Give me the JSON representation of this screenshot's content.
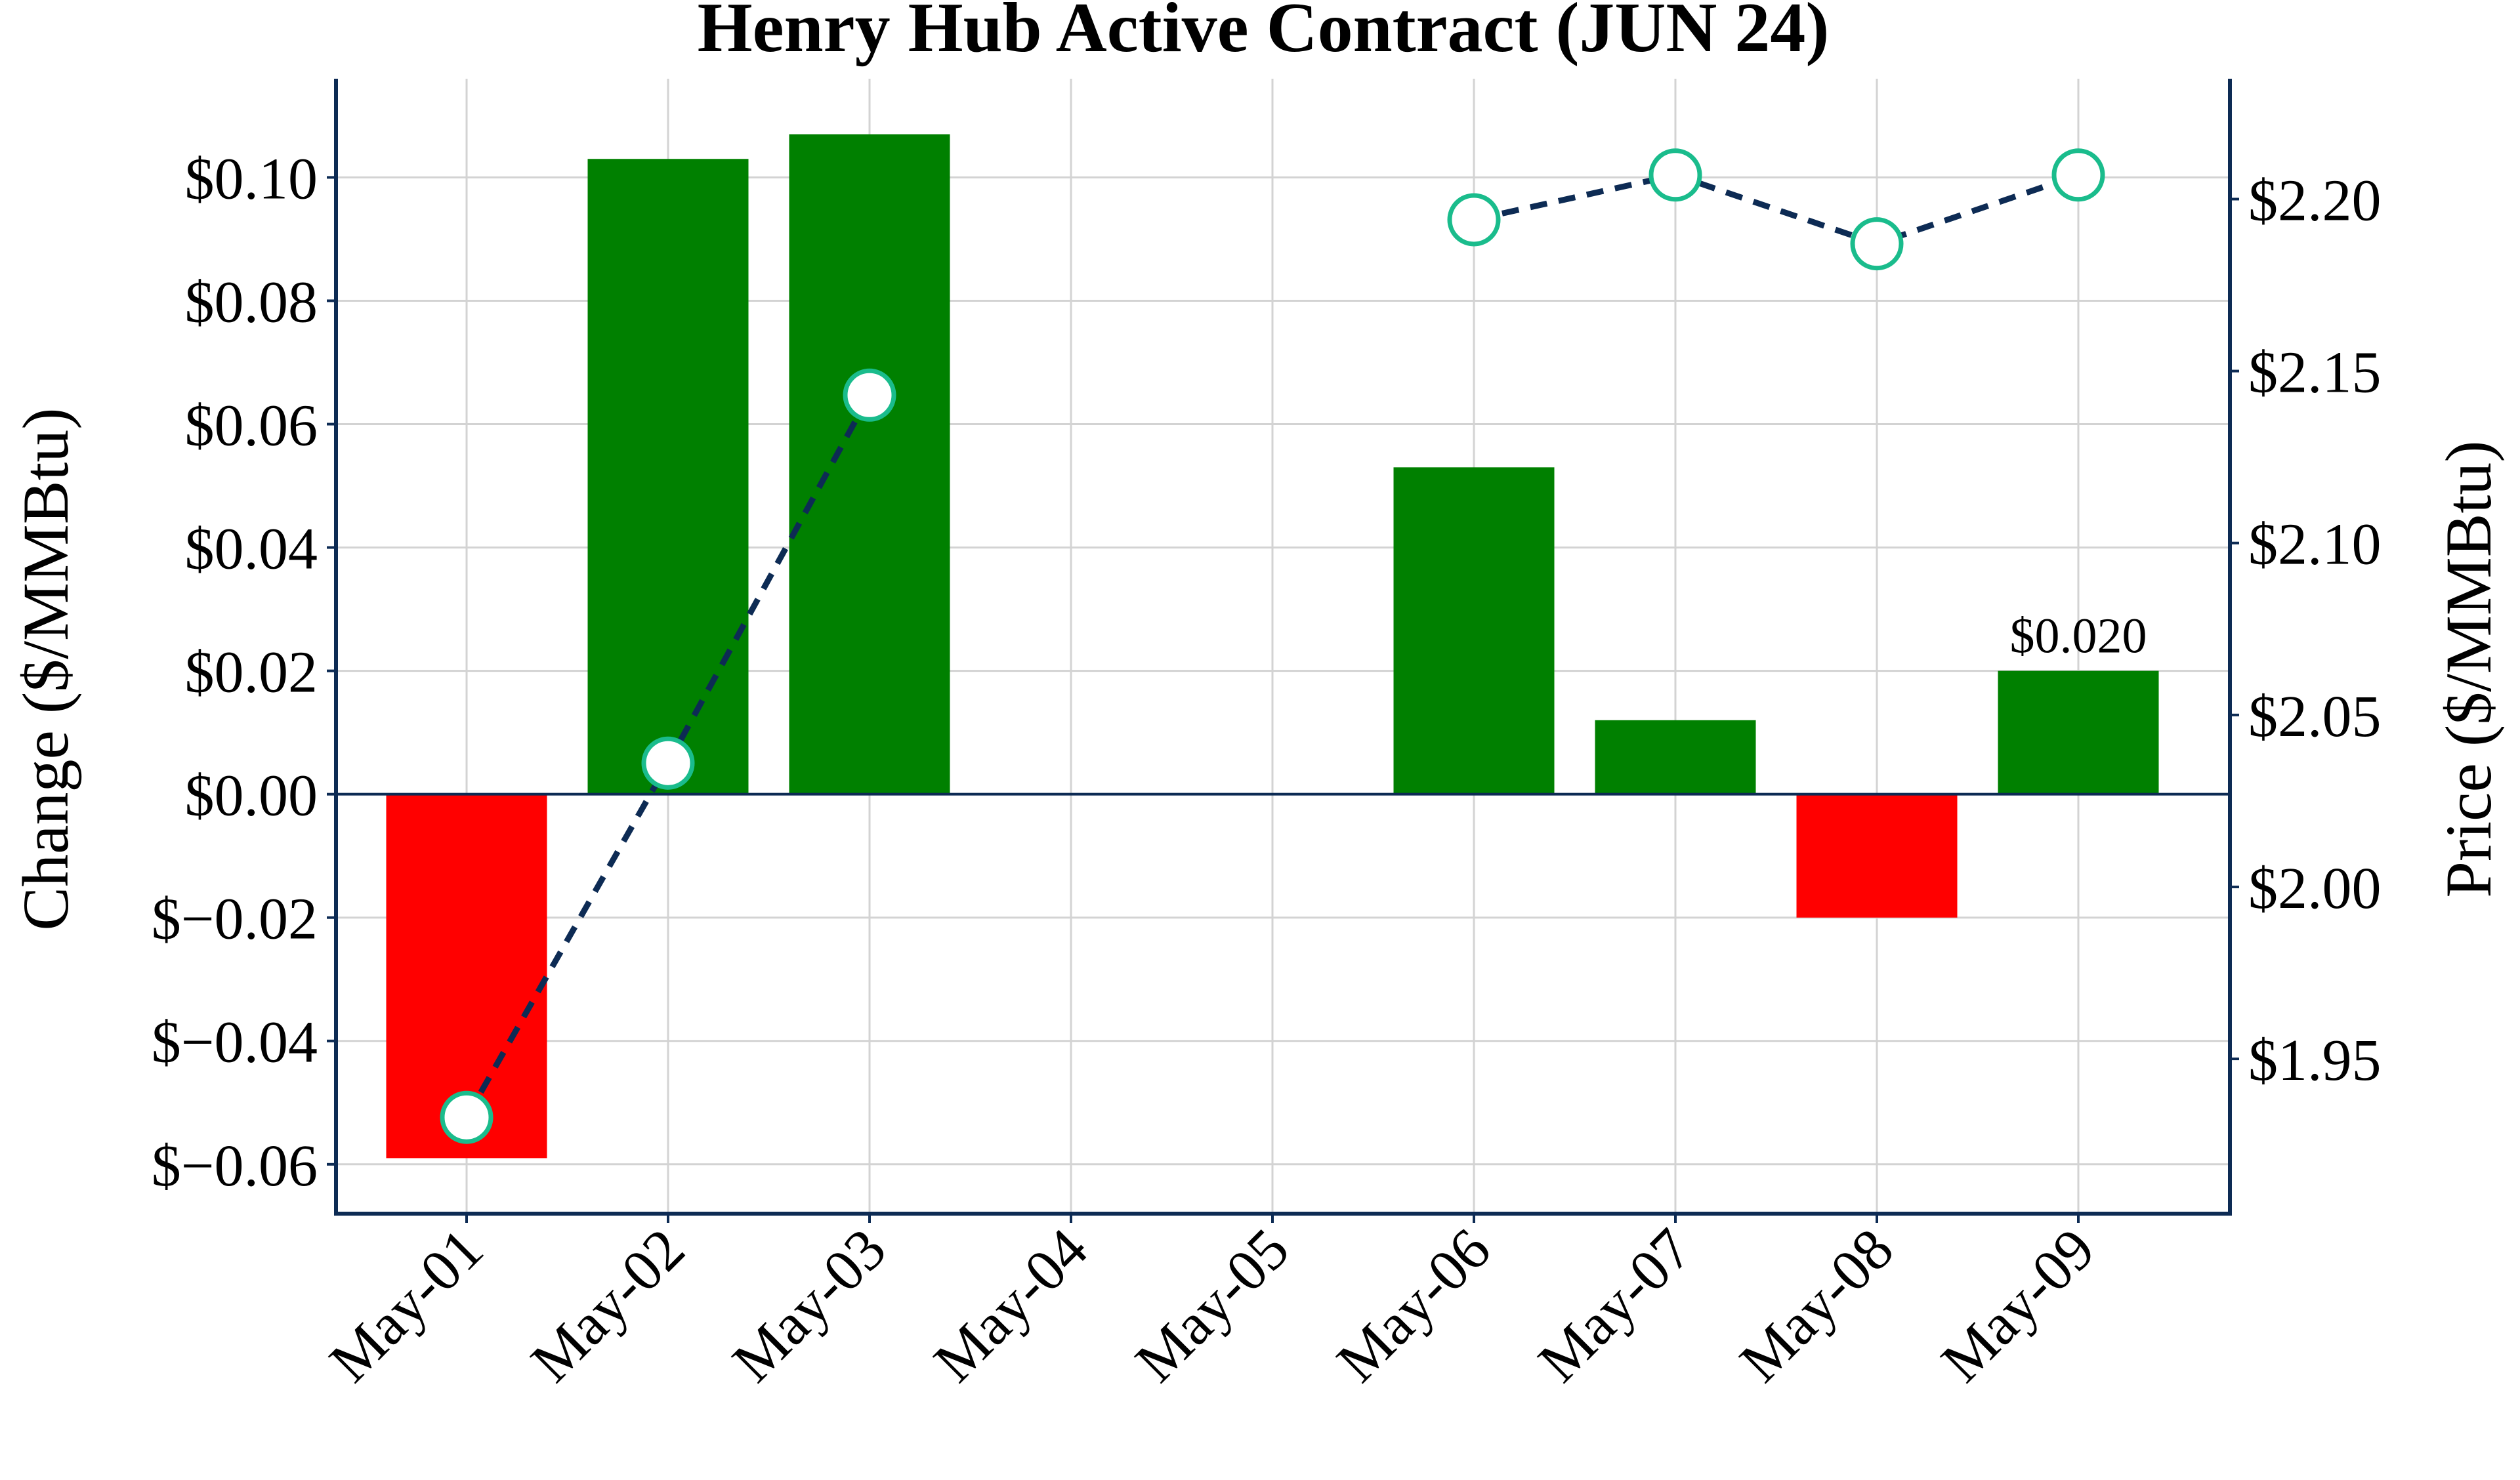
{
  "chart_data": {
    "type": "bar",
    "title": "Henry Hub Active Contract (JUN 24)",
    "categories": [
      "May-01",
      "May-02",
      "May-03",
      "May-04",
      "May-05",
      "May-06",
      "May-07",
      "May-08",
      "May-09"
    ],
    "left_axis": {
      "label": "Change ($/MMBtu)",
      "ylim": [
        -0.068,
        0.116
      ],
      "ticks": [
        -0.06,
        -0.04,
        -0.02,
        0.0,
        0.02,
        0.04,
        0.06,
        0.08,
        0.1
      ],
      "tick_labels": [
        "$−0.06",
        "$−0.04",
        "$−0.02",
        "$0.00",
        "$0.02",
        "$0.04",
        "$0.06",
        "$0.08",
        "$0.10"
      ]
    },
    "right_axis": {
      "label": "Price ($/MMBtu)",
      "ylim": [
        1.905,
        2.235
      ],
      "ticks": [
        1.95,
        2.0,
        2.05,
        2.1,
        2.15,
        2.2
      ],
      "tick_labels": [
        "$1.95",
        "$2.00",
        "$2.05",
        "$2.10",
        "$2.15",
        "$2.20"
      ]
    },
    "series": [
      {
        "axis": "left",
        "type": "bar",
        "values": [
          -0.059,
          0.103,
          0.107,
          null,
          null,
          0.053,
          0.012,
          -0.02,
          0.02
        ],
        "color_positive": "#008000",
        "color_negative": "#ff0000"
      },
      {
        "axis": "right",
        "type": "line",
        "values": [
          1.933,
          2.036,
          2.143,
          null,
          null,
          2.194,
          2.207,
          2.187,
          2.207
        ],
        "line_color": "#0d2b54",
        "marker_face": "#ffffff",
        "marker_edge": "#1abc8c",
        "line_style": "dashed"
      }
    ],
    "annotations": [
      {
        "category": "May-09",
        "text": "$0.020"
      }
    ],
    "grid": true,
    "legend": "none"
  }
}
